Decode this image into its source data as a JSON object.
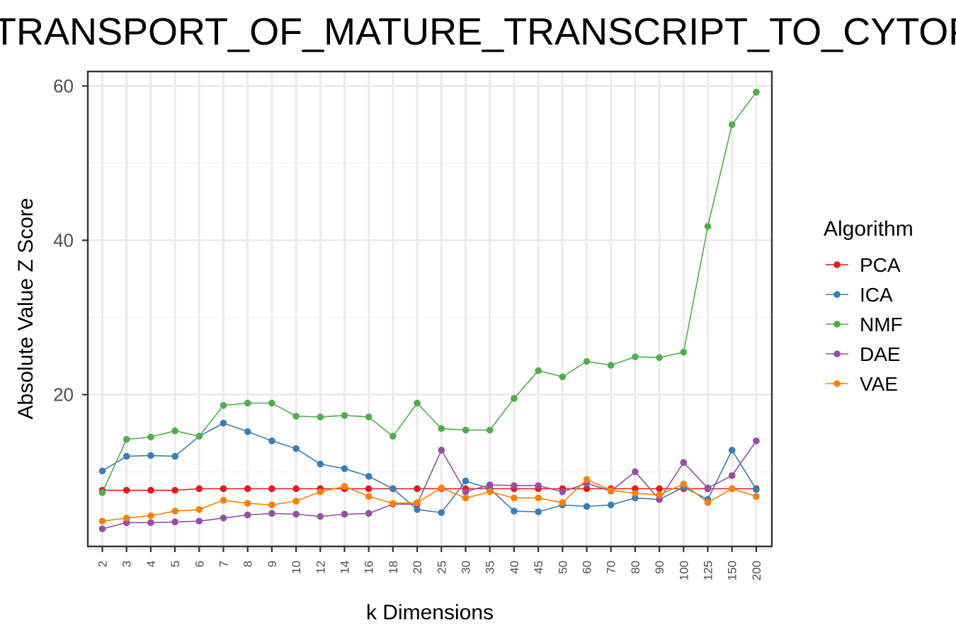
{
  "chart_data": {
    "type": "line",
    "title": "TRANSPORT_OF_MATURE_TRANSCRIPT_TO_CYTOPLASM",
    "xlabel": "k Dimensions",
    "ylabel": "Absolute Value Z Score",
    "ylim": [
      0,
      60
    ],
    "yticks": [
      20,
      40,
      60
    ],
    "grid": true,
    "legend_title": "Algorithm",
    "legend_position": "right",
    "categories": [
      "2",
      "3",
      "4",
      "5",
      "6",
      "7",
      "8",
      "9",
      "10",
      "12",
      "14",
      "16",
      "18",
      "20",
      "25",
      "30",
      "35",
      "40",
      "45",
      "50",
      "60",
      "70",
      "80",
      "90",
      "100",
      "125",
      "150",
      "200"
    ],
    "series": [
      {
        "name": "PCA",
        "color": "#E41A1C",
        "values": [
          7.6,
          7.6,
          7.6,
          7.6,
          7.8,
          7.8,
          7.8,
          7.8,
          7.8,
          7.8,
          7.8,
          7.8,
          7.8,
          7.8,
          7.8,
          7.8,
          7.8,
          7.8,
          7.8,
          7.8,
          7.8,
          7.8,
          7.8,
          7.8,
          7.8,
          7.8,
          7.8,
          7.8
        ]
      },
      {
        "name": "ICA",
        "color": "#377EB8",
        "values": [
          10.1,
          12.0,
          12.1,
          12.0,
          14.6,
          16.3,
          15.2,
          14.0,
          13.0,
          11.0,
          10.4,
          9.4,
          7.8,
          5.1,
          4.7,
          8.8,
          7.8,
          4.9,
          4.8,
          5.7,
          5.5,
          5.7,
          6.6,
          6.4,
          8.0,
          6.4,
          12.8,
          7.7
        ]
      },
      {
        "name": "NMF",
        "color": "#4DAF4A",
        "values": [
          7.3,
          14.2,
          14.5,
          15.3,
          14.6,
          18.6,
          18.9,
          18.9,
          17.2,
          17.1,
          17.3,
          17.1,
          14.6,
          18.9,
          15.6,
          15.4,
          15.4,
          19.5,
          23.1,
          22.3,
          24.3,
          23.8,
          24.9,
          24.8,
          25.5,
          41.8,
          55.0,
          59.2
        ]
      },
      {
        "name": "DAE",
        "color": "#984EA3",
        "values": [
          2.6,
          3.4,
          3.4,
          3.5,
          3.6,
          4.0,
          4.4,
          4.6,
          4.5,
          4.2,
          4.5,
          4.6,
          5.8,
          5.8,
          12.8,
          7.4,
          8.3,
          8.2,
          8.2,
          7.4,
          8.5,
          7.5,
          10.0,
          6.4,
          11.2,
          7.9,
          9.5,
          14.0
        ]
      },
      {
        "name": "VAE",
        "color": "#FF7F00",
        "values": [
          3.6,
          4.0,
          4.3,
          4.9,
          5.1,
          6.3,
          5.9,
          5.7,
          6.2,
          7.4,
          8.1,
          6.8,
          5.9,
          6.0,
          7.9,
          6.6,
          7.4,
          6.6,
          6.6,
          6.0,
          9.0,
          7.6,
          7.2,
          7.0,
          8.4,
          6.0,
          7.8,
          6.8
        ]
      }
    ]
  }
}
